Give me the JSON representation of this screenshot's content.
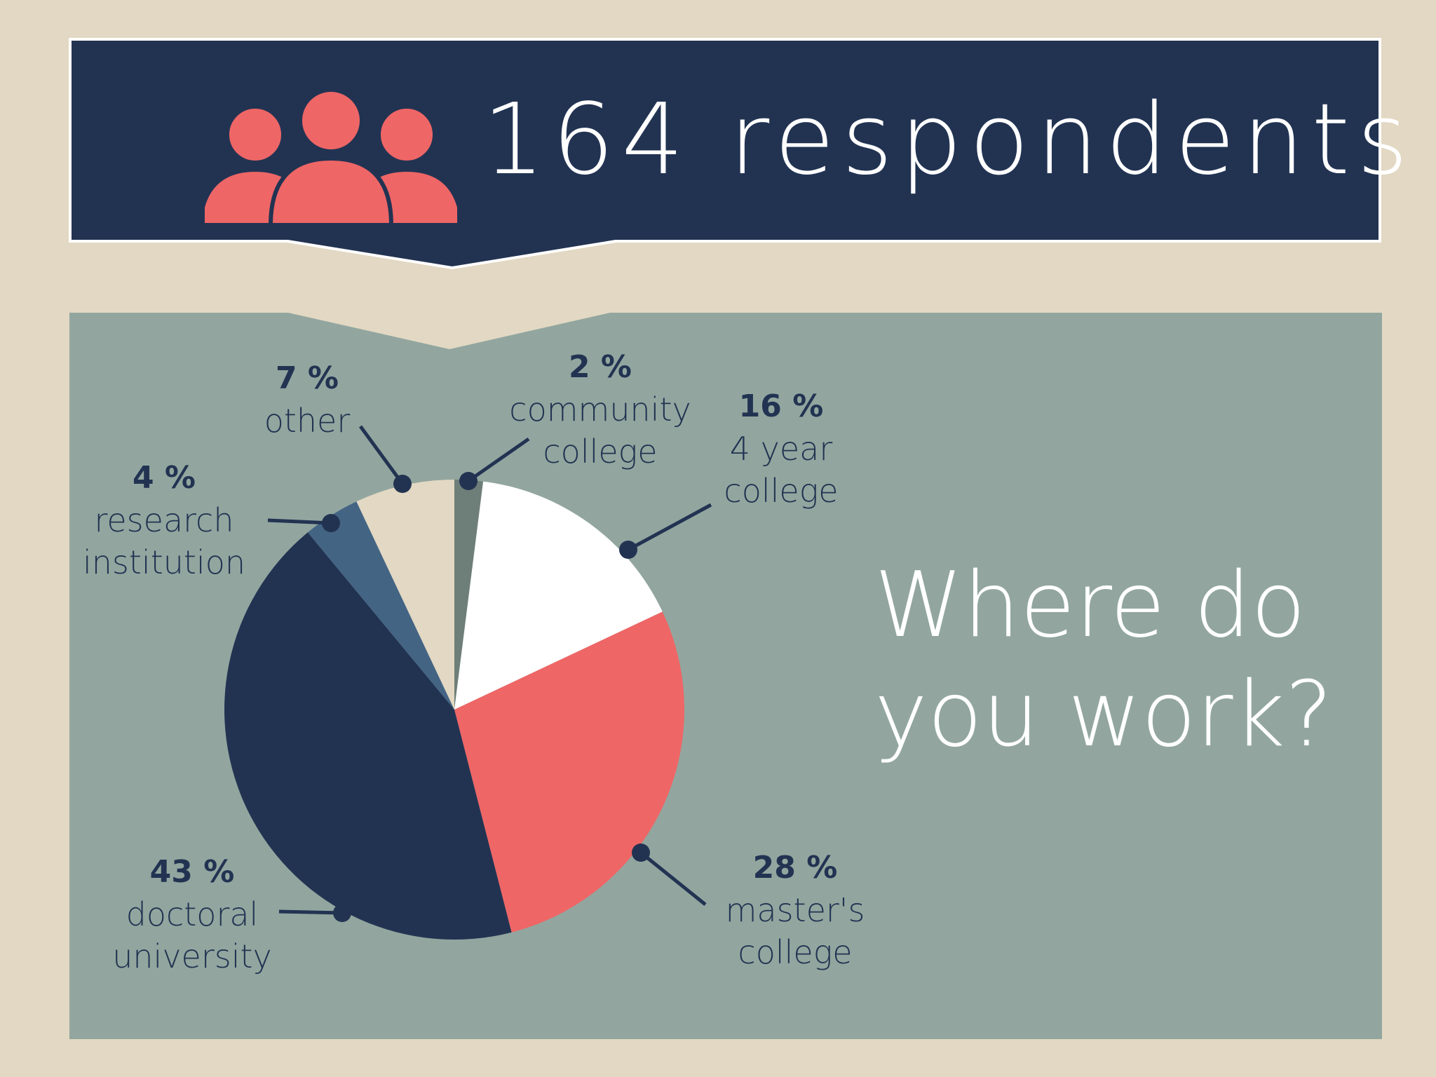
{
  "banner": {
    "title": "164 respondents",
    "icon": "people-group-icon",
    "icon_color": "#ef6666",
    "background": "#223352"
  },
  "question": "Where do\nyou work?",
  "colors": {
    "page_background": "#e2d8c3",
    "panel_background": "#92a69f",
    "label_text": "#223352"
  },
  "chart_data": {
    "type": "pie",
    "title": "Where do you work?",
    "start_angle_deg": 0,
    "direction": "clockwise",
    "slices": [
      {
        "label": "community\ncollege",
        "value": 2,
        "pct_label": "2 %",
        "color": "#6e7e78"
      },
      {
        "label": "4 year\ncollege",
        "value": 16,
        "pct_label": "16 %",
        "color": "#ffffff"
      },
      {
        "label": "master's\ncollege",
        "value": 28,
        "pct_label": "28 %",
        "color": "#ef6666"
      },
      {
        "label": "doctoral\nuniversity",
        "value": 43,
        "pct_label": "43 %",
        "color": "#223352"
      },
      {
        "label": "research\ninstitution",
        "value": 4,
        "pct_label": "4 %",
        "color": "#446484"
      },
      {
        "label": "other",
        "value": 7,
        "pct_label": "7 %",
        "color": "#e2d8c3"
      }
    ]
  }
}
